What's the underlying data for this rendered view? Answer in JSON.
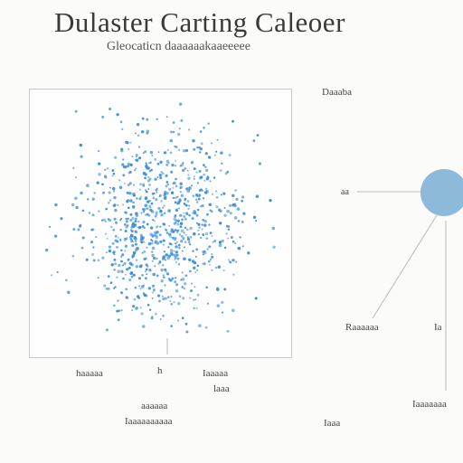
{
  "title": "Dulaster Carting Caleoer",
  "subtitle": "Gleocaticn daaaaaakaaeeeee",
  "labels": {
    "right_top": "Daaaba",
    "right_mid": "aa",
    "right_lower_left": "Raaaaaa",
    "right_lower_right": "Ia",
    "right_bottom": "Iaaaaaaa",
    "bottom_left": "haaaaa",
    "bottom_tick": "h",
    "bottom_right_1": "Iaaaaa",
    "bottom_right_2": "laaa",
    "footer_1": "aaaaaa",
    "footer_2": "Iaaaaaaaaaa",
    "footer_3": "Iaaa"
  },
  "colors": {
    "points": "#3f8fd6",
    "node": "#8db9da",
    "lines": "#b9b9b9"
  },
  "chart_data": {
    "type": "scatter",
    "title": "",
    "xlabel": "",
    "ylabel": "",
    "xlim": [
      0,
      100
    ],
    "ylim": [
      0,
      100
    ],
    "grid": false,
    "cluster": {
      "shape": "roughly circular, denser toward center",
      "center": [
        50,
        50
      ],
      "approx_point_count": 900
    }
  }
}
